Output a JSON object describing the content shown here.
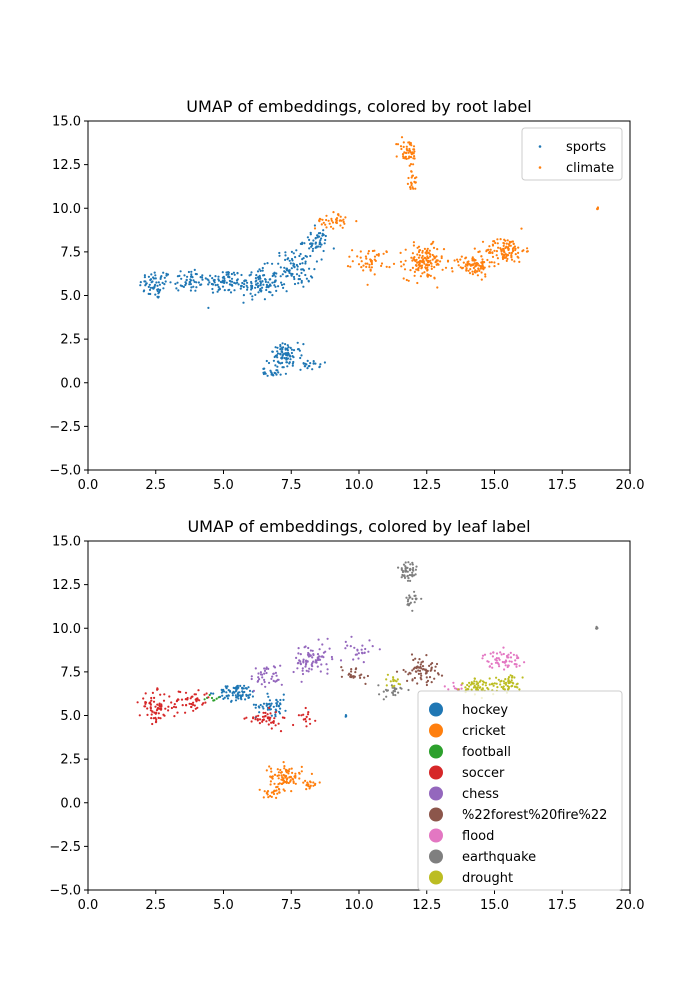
{
  "chart_data": [
    {
      "type": "scatter",
      "title": "UMAP of embeddings, colored by root label",
      "xlabel": "",
      "ylabel": "",
      "xlim": [
        0,
        20
      ],
      "ylim": [
        -5,
        15
      ],
      "xticks": [
        0,
        2.5,
        5,
        7.5,
        10,
        12.5,
        15,
        17.5,
        20
      ],
      "xtick_labels": [
        "0.0",
        "2.5",
        "5.0",
        "7.5",
        "10.0",
        "12.5",
        "15.0",
        "17.5",
        "20.0"
      ],
      "yticks": [
        -5,
        -2.5,
        0,
        2.5,
        5,
        7.5,
        10,
        12.5,
        15
      ],
      "ytick_labels": [
        "−5.0",
        "−2.5",
        "0.0",
        "2.5",
        "5.0",
        "7.5",
        "10.0",
        "12.5",
        "15.0"
      ],
      "grid": false,
      "legend_position": "top-right",
      "legend": [
        {
          "name": "sports",
          "color": "#1f77b4"
        },
        {
          "name": "climate",
          "color": "#ff7f0e"
        }
      ],
      "series": [
        {
          "name": "sports",
          "color": "#1f77b4",
          "clusters": [
            {
              "center": [
                2.5,
                5.6
              ],
              "spread": [
                0.5,
                0.7
              ],
              "count": 60
            },
            {
              "center": [
                3.7,
                5.9
              ],
              "spread": [
                0.6,
                0.6
              ],
              "count": 50
            },
            {
              "center": [
                5.0,
                5.8
              ],
              "spread": [
                0.6,
                0.6
              ],
              "count": 70
            },
            {
              "center": [
                6.3,
                5.7
              ],
              "spread": [
                0.6,
                0.8
              ],
              "count": 110
            },
            {
              "center": [
                7.6,
                6.5
              ],
              "spread": [
                0.6,
                0.9
              ],
              "count": 90
            },
            {
              "center": [
                8.4,
                8.1
              ],
              "spread": [
                0.4,
                0.6
              ],
              "count": 50
            },
            {
              "center": [
                7.3,
                1.5
              ],
              "spread": [
                0.5,
                0.6
              ],
              "count": 90
            },
            {
              "center": [
                6.8,
                0.6
              ],
              "spread": [
                0.3,
                0.2
              ],
              "count": 20
            },
            {
              "center": [
                8.2,
                1.0
              ],
              "spread": [
                0.3,
                0.2
              ],
              "count": 20
            }
          ]
        },
        {
          "name": "climate",
          "color": "#ff7f0e",
          "clusters": [
            {
              "center": [
                9.0,
                9.3
              ],
              "spread": [
                0.5,
                0.4
              ],
              "count": 40
            },
            {
              "center": [
                10.5,
                7.0
              ],
              "spread": [
                0.6,
                0.6
              ],
              "count": 50
            },
            {
              "center": [
                12.4,
                6.9
              ],
              "spread": [
                0.6,
                0.8
              ],
              "count": 140
            },
            {
              "center": [
                14.2,
                6.7
              ],
              "spread": [
                0.6,
                0.5
              ],
              "count": 90
            },
            {
              "center": [
                15.4,
                7.6
              ],
              "spread": [
                0.6,
                0.6
              ],
              "count": 110
            },
            {
              "center": [
                11.8,
                13.2
              ],
              "spread": [
                0.3,
                0.7
              ],
              "count": 50
            },
            {
              "center": [
                12.0,
                11.5
              ],
              "spread": [
                0.2,
                0.5
              ],
              "count": 20
            },
            {
              "center": [
                18.8,
                10.0
              ],
              "spread": [
                0.05,
                0.05
              ],
              "count": 5
            }
          ]
        }
      ]
    },
    {
      "type": "scatter",
      "title": "UMAP of embeddings, colored by leaf label",
      "xlabel": "",
      "ylabel": "",
      "xlim": [
        0,
        20
      ],
      "ylim": [
        -5,
        15
      ],
      "xticks": [
        0,
        2.5,
        5,
        7.5,
        10,
        12.5,
        15,
        17.5,
        20
      ],
      "xtick_labels": [
        "0.0",
        "2.5",
        "5.0",
        "7.5",
        "10.0",
        "12.5",
        "15.0",
        "17.5",
        "20.0"
      ],
      "yticks": [
        -5,
        -2.5,
        0,
        2.5,
        5,
        7.5,
        10,
        12.5,
        15
      ],
      "ytick_labels": [
        "−5.0",
        "−2.5",
        "0.0",
        "2.5",
        "5.0",
        "7.5",
        "10.0",
        "12.5",
        "15.0"
      ],
      "grid": false,
      "legend_position": "lower-right",
      "legend": [
        {
          "name": "hockey",
          "color": "#1f77b4"
        },
        {
          "name": "cricket",
          "color": "#ff7f0e"
        },
        {
          "name": "football",
          "color": "#2ca02c"
        },
        {
          "name": "soccer",
          "color": "#d62728"
        },
        {
          "name": "chess",
          "color": "#9467bd"
        },
        {
          "name": "%22forest%20fire%22",
          "color": "#8c564b"
        },
        {
          "name": "flood",
          "color": "#e377c2"
        },
        {
          "name": "earthquake",
          "color": "#7f7f7f"
        },
        {
          "name": "drought",
          "color": "#bcbd22"
        }
      ],
      "series": [
        {
          "name": "hockey",
          "color": "#1f77b4",
          "clusters": [
            {
              "center": [
                5.5,
                6.3
              ],
              "spread": [
                0.6,
                0.4
              ],
              "count": 80
            },
            {
              "center": [
                6.8,
                5.6
              ],
              "spread": [
                0.5,
                0.5
              ],
              "count": 50
            },
            {
              "center": [
                9.5,
                5.0
              ],
              "spread": [
                0.05,
                0.05
              ],
              "count": 3
            }
          ]
        },
        {
          "name": "cricket",
          "color": "#ff7f0e",
          "clusters": [
            {
              "center": [
                7.3,
                1.5
              ],
              "spread": [
                0.5,
                0.6
              ],
              "count": 90
            },
            {
              "center": [
                6.8,
                0.6
              ],
              "spread": [
                0.3,
                0.2
              ],
              "count": 20
            },
            {
              "center": [
                8.2,
                1.0
              ],
              "spread": [
                0.3,
                0.2
              ],
              "count": 20
            }
          ]
        },
        {
          "name": "football",
          "color": "#2ca02c",
          "clusters": [
            {
              "center": [
                4.5,
                6.0
              ],
              "spread": [
                0.3,
                0.3
              ],
              "count": 8
            }
          ]
        },
        {
          "name": "soccer",
          "color": "#d62728",
          "clusters": [
            {
              "center": [
                2.5,
                5.5
              ],
              "spread": [
                0.5,
                0.7
              ],
              "count": 70
            },
            {
              "center": [
                3.8,
                5.8
              ],
              "spread": [
                0.6,
                0.6
              ],
              "count": 50
            },
            {
              "center": [
                6.5,
                4.8
              ],
              "spread": [
                0.5,
                0.4
              ],
              "count": 45
            },
            {
              "center": [
                8.1,
                4.9
              ],
              "spread": [
                0.3,
                0.4
              ],
              "count": 15
            }
          ]
        },
        {
          "name": "chess",
          "color": "#9467bd",
          "clusters": [
            {
              "center": [
                8.3,
                8.2
              ],
              "spread": [
                0.6,
                0.8
              ],
              "count": 80
            },
            {
              "center": [
                6.6,
                7.2
              ],
              "spread": [
                0.5,
                0.6
              ],
              "count": 40
            },
            {
              "center": [
                10.0,
                8.8
              ],
              "spread": [
                0.5,
                0.5
              ],
              "count": 25
            }
          ]
        },
        {
          "name": "%22forest%20fire%22",
          "color": "#8c564b",
          "clusters": [
            {
              "center": [
                12.3,
                7.6
              ],
              "spread": [
                0.5,
                0.6
              ],
              "count": 70
            },
            {
              "center": [
                9.8,
                7.4
              ],
              "spread": [
                0.5,
                0.4
              ],
              "count": 25
            }
          ]
        },
        {
          "name": "flood",
          "color": "#e377c2",
          "clusters": [
            {
              "center": [
                15.3,
                8.2
              ],
              "spread": [
                0.6,
                0.4
              ],
              "count": 60
            },
            {
              "center": [
                13.5,
                6.6
              ],
              "spread": [
                0.3,
                0.3
              ],
              "count": 10
            }
          ]
        },
        {
          "name": "earthquake",
          "color": "#7f7f7f",
          "clusters": [
            {
              "center": [
                11.8,
                13.2
              ],
              "spread": [
                0.3,
                0.7
              ],
              "count": 50
            },
            {
              "center": [
                12.0,
                11.6
              ],
              "spread": [
                0.2,
                0.5
              ],
              "count": 20
            },
            {
              "center": [
                11.2,
                6.4
              ],
              "spread": [
                0.4,
                0.3
              ],
              "count": 25
            },
            {
              "center": [
                18.8,
                10.0
              ],
              "spread": [
                0.05,
                0.05
              ],
              "count": 5
            }
          ]
        },
        {
          "name": "drought",
          "color": "#bcbd22",
          "clusters": [
            {
              "center": [
                14.5,
                6.7
              ],
              "spread": [
                0.6,
                0.4
              ],
              "count": 70
            },
            {
              "center": [
                15.6,
                6.9
              ],
              "spread": [
                0.3,
                0.4
              ],
              "count": 40
            },
            {
              "center": [
                11.3,
                7.0
              ],
              "spread": [
                0.3,
                0.3
              ],
              "count": 15
            }
          ]
        }
      ]
    }
  ]
}
